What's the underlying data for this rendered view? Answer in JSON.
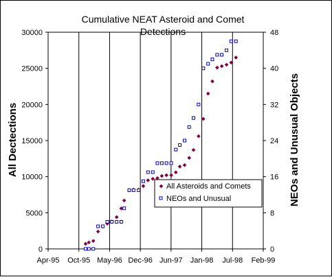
{
  "chart_data": {
    "type": "scatter",
    "title_lines": [
      "Cumulative NEAT Asteroid and Comet",
      "Detections"
    ],
    "ylabel": "All Dectections",
    "y2label": "NEOs and Unusual Objects",
    "xlabel": "",
    "x_tick_labels": [
      "Apr-95",
      "Oct-95",
      "May-96",
      "Dec-96",
      "Jun-97",
      "Jan-98",
      "Jul-98",
      "Feb-99"
    ],
    "x_ticks": [
      "1995-04-01",
      "1995-10-18",
      "1996-05-05",
      "1996-11-21",
      "1997-06-09",
      "1997-12-26",
      "1998-07-14",
      "1999-01-30"
    ],
    "xlim": [
      "1995-04-01",
      "1999-01-30"
    ],
    "ylim": [
      0,
      30000
    ],
    "y_ticks": [
      0,
      5000,
      10000,
      15000,
      20000,
      25000,
      30000
    ],
    "y2lim": [
      0,
      48
    ],
    "y2_ticks": [
      0,
      8,
      16,
      24,
      32,
      40,
      48
    ],
    "grid": "vertical",
    "legend_position": "right-middle",
    "series": [
      {
        "name": "All Asteroids and Comets",
        "axis": "left",
        "marker": "diamond",
        "color": "#800040",
        "points": [
          [
            "1995-12-01",
            700
          ],
          [
            "1995-12-22",
            900
          ],
          [
            "1996-01-20",
            1100
          ],
          [
            "1996-02-20",
            2400
          ],
          [
            "1996-03-22",
            3100
          ],
          [
            "1996-04-20",
            3500
          ],
          [
            "1996-05-20",
            3800
          ],
          [
            "1996-06-20",
            4400
          ],
          [
            "1996-07-20",
            5600
          ],
          [
            "1996-08-08",
            6700
          ],
          [
            "1996-09-10",
            8100
          ],
          [
            "1996-10-08",
            8200
          ],
          [
            "1996-11-10",
            8200
          ],
          [
            "1996-12-10",
            8700
          ],
          [
            "1997-01-10",
            9500
          ],
          [
            "1997-02-10",
            9700
          ],
          [
            "1997-03-12",
            9800
          ],
          [
            "1997-04-10",
            10100
          ],
          [
            "1997-05-10",
            10200
          ],
          [
            "1997-06-10",
            10200
          ],
          [
            "1997-07-10",
            10600
          ],
          [
            "1997-08-05",
            11400
          ],
          [
            "1997-09-05",
            11600
          ],
          [
            "1997-10-05",
            12600
          ],
          [
            "1997-11-02",
            13700
          ],
          [
            "1997-12-05",
            15600
          ],
          [
            "1998-01-05",
            18000
          ],
          [
            "1998-02-05",
            21500
          ],
          [
            "1998-03-05",
            23200
          ],
          [
            "1998-04-05",
            25100
          ],
          [
            "1998-05-05",
            25300
          ],
          [
            "1998-06-05",
            25500
          ],
          [
            "1998-07-05",
            25800
          ],
          [
            "1998-08-05",
            26500
          ]
        ]
      },
      {
        "name": "NEOs and Unusual",
        "axis": "right",
        "marker": "square",
        "color": "#0000cc",
        "points": [
          [
            "1995-12-01",
            0
          ],
          [
            "1995-12-22",
            0
          ],
          [
            "1996-01-20",
            0
          ],
          [
            "1996-02-20",
            5
          ],
          [
            "1996-03-22",
            5
          ],
          [
            "1996-04-20",
            6
          ],
          [
            "1996-05-20",
            6
          ],
          [
            "1996-06-20",
            6
          ],
          [
            "1996-07-20",
            6
          ],
          [
            "1996-08-08",
            9
          ],
          [
            "1996-09-10",
            13
          ],
          [
            "1996-10-08",
            13
          ],
          [
            "1996-11-10",
            13
          ],
          [
            "1996-12-10",
            15
          ],
          [
            "1997-01-10",
            17
          ],
          [
            "1997-02-10",
            17
          ],
          [
            "1997-03-12",
            19
          ],
          [
            "1997-04-10",
            19
          ],
          [
            "1997-05-10",
            19
          ],
          [
            "1997-06-10",
            19
          ],
          [
            "1997-07-10",
            22
          ],
          [
            "1997-08-05",
            23
          ],
          [
            "1997-09-05",
            24
          ],
          [
            "1997-10-05",
            27
          ],
          [
            "1997-11-02",
            29
          ],
          [
            "1997-12-05",
            32
          ],
          [
            "1998-01-05",
            40
          ],
          [
            "1998-02-05",
            41
          ],
          [
            "1998-03-05",
            42
          ],
          [
            "1998-04-05",
            43
          ],
          [
            "1998-05-05",
            43
          ],
          [
            "1998-06-05",
            44
          ],
          [
            "1998-07-05",
            46
          ],
          [
            "1998-08-05",
            46
          ]
        ]
      }
    ]
  }
}
